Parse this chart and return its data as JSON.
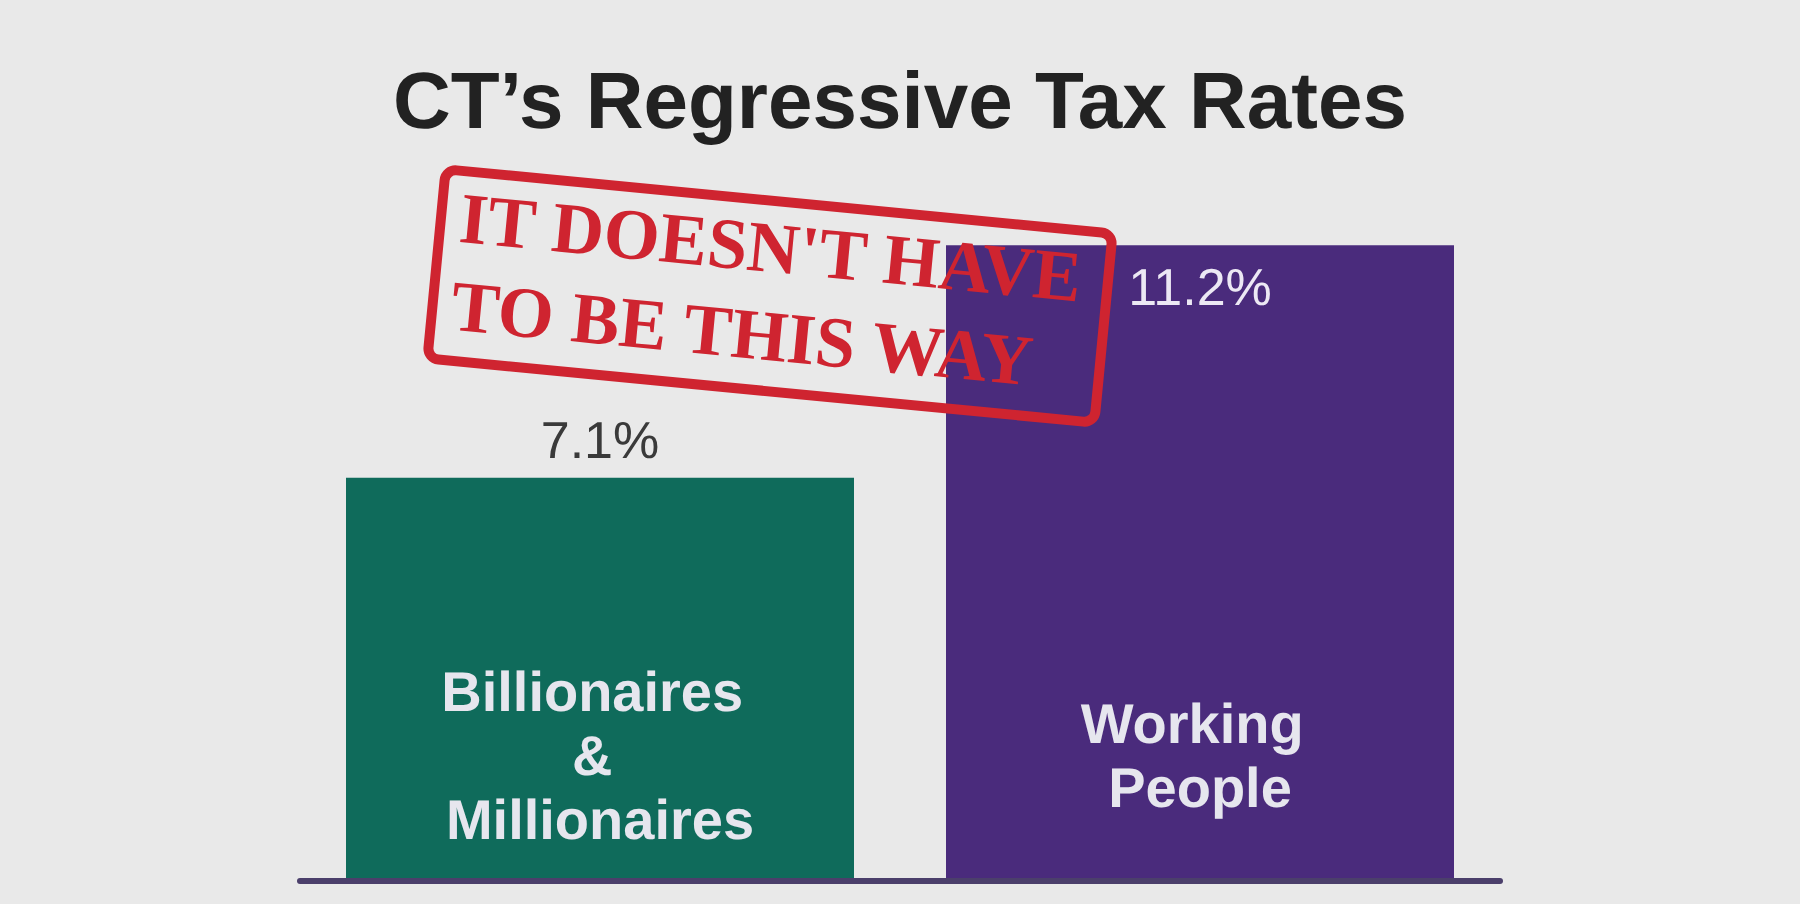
{
  "chart_data": {
    "type": "bar",
    "title": "CT’s Regressive Tax Rates",
    "categories": [
      "Billionaires & Millionaires",
      "Working People"
    ],
    "values": [
      7.1,
      11.2
    ],
    "colors": [
      "#0f6b5b",
      "#4a2b7c"
    ],
    "value_labels": [
      "7.1%",
      "11.2%"
    ],
    "annotations": [
      "IT DOESN'T HAVE TO BE THIS WAY"
    ]
  }
}
